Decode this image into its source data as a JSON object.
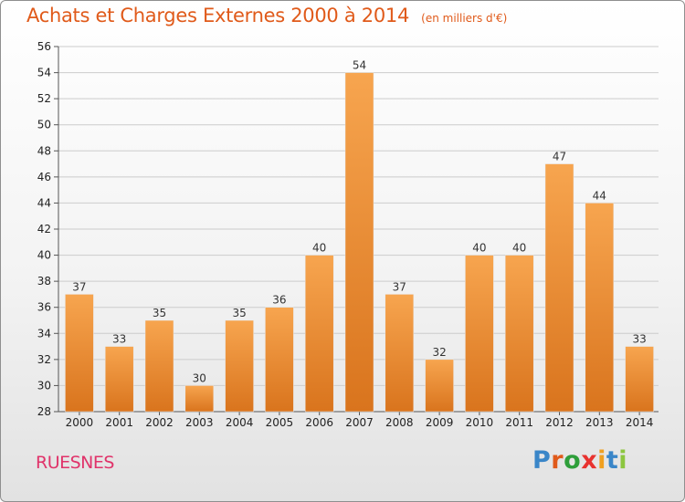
{
  "header": {
    "title": "Achats et Charges Externes 2000 à 2014",
    "unit_note": "(en milliers d'€)"
  },
  "footer": {
    "place": "RUESNES",
    "logo_text": "Proxiti",
    "logo_letter_colors": [
      "#3a86c8",
      "#e05a1a",
      "#2e9e3a",
      "#e8322f",
      "#f0a020",
      "#3a86c8",
      "#8cc63f"
    ]
  },
  "colors": {
    "bar_light": "#f7a54f",
    "bar_dark": "#d9741d",
    "title": "#e05a1a",
    "place": "#e0336a",
    "grid": "#cccccc"
  },
  "chart_data": {
    "type": "bar",
    "categories": [
      "2000",
      "2001",
      "2002",
      "2003",
      "2004",
      "2005",
      "2006",
      "2007",
      "2008",
      "2009",
      "2010",
      "2011",
      "2012",
      "2013",
      "2014"
    ],
    "values": [
      37,
      33,
      35,
      30,
      35,
      36,
      40,
      54,
      37,
      32,
      40,
      40,
      47,
      44,
      33
    ],
    "ylim": [
      28,
      56
    ],
    "yticks": [
      28,
      30,
      32,
      34,
      36,
      38,
      40,
      42,
      44,
      46,
      48,
      50,
      52,
      54,
      56
    ],
    "grid": true,
    "data_labels": true
  }
}
